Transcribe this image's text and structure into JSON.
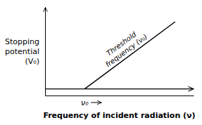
{
  "chart_data": {
    "type": "line",
    "x": [
      0.28,
      0.92
    ],
    "values": [
      0.0,
      0.82
    ],
    "color": "#000000",
    "xlim": [
      0,
      1.05
    ],
    "ylim": [
      -0.08,
      1.0
    ],
    "xlabel": "Frequency of incident radiation (ν)",
    "ylabel": "Stopping\npotential\n(V₀)",
    "annotations": [
      {
        "text": "Threshold\nfrequency (ν₀)"
      },
      {
        "text": "ν₀"
      }
    ],
    "tick_labels": false,
    "grid": false
  }
}
